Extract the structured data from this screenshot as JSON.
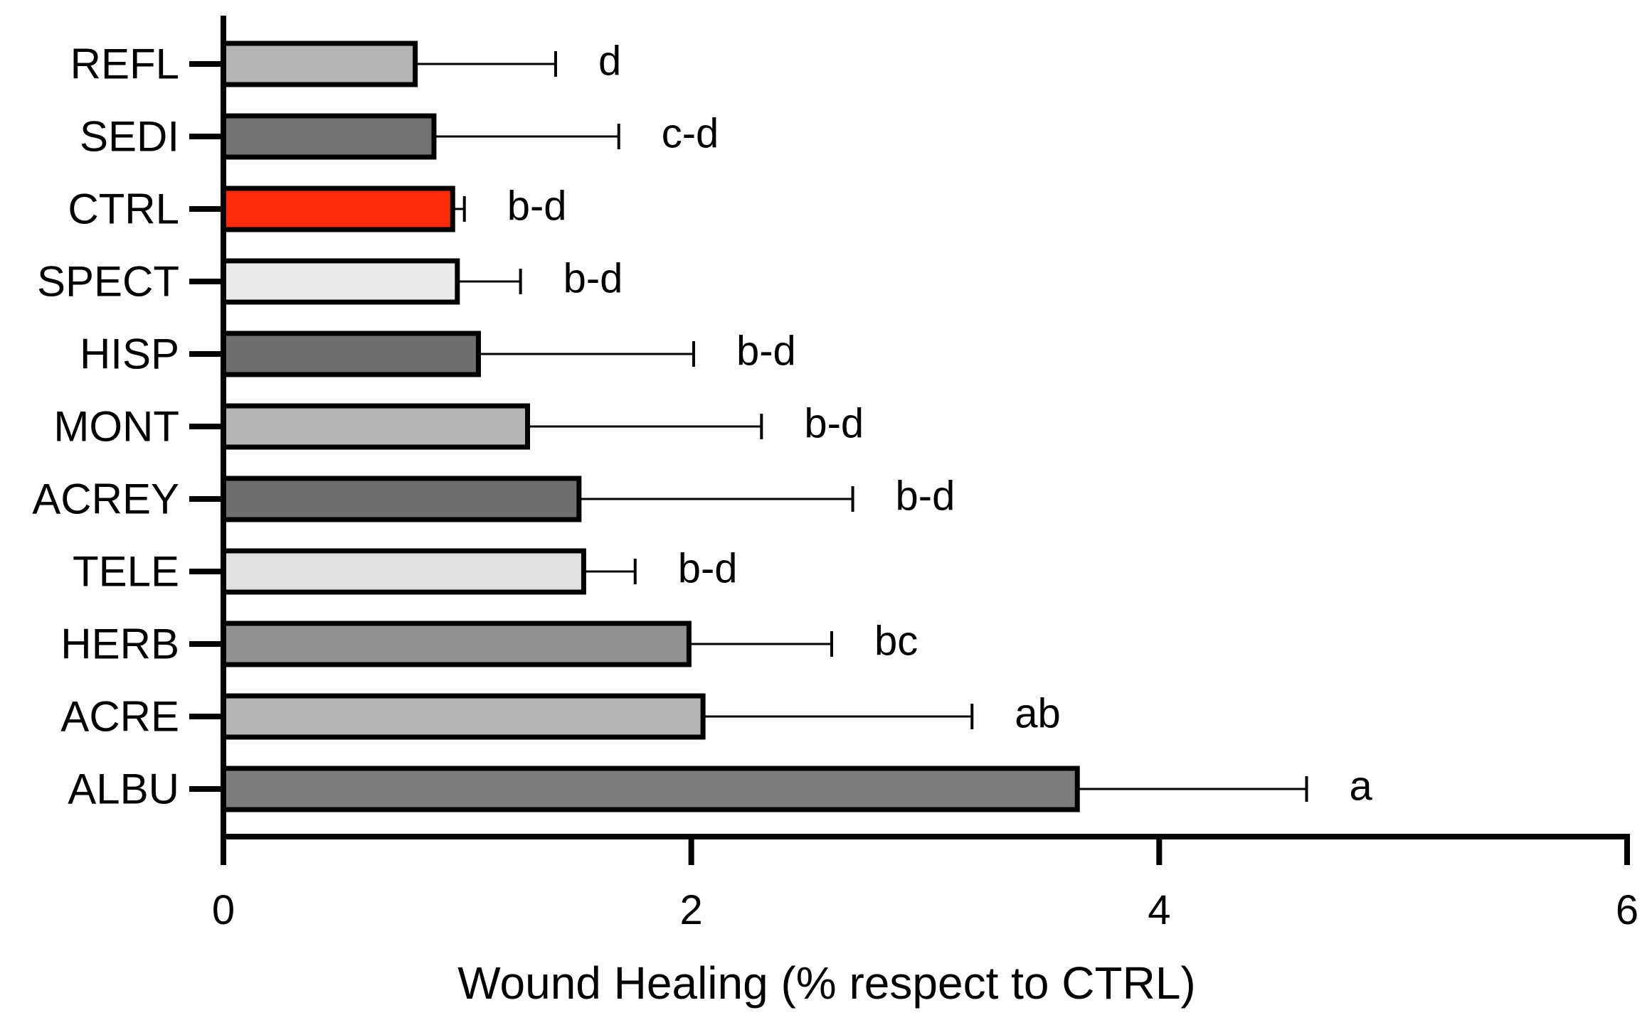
{
  "chart_data": {
    "type": "bar",
    "orientation": "horizontal",
    "categories": [
      "REFL",
      "SEDI",
      "CTRL",
      "SPECT",
      "HISP",
      "MONT",
      "ACREY",
      "TELE",
      "HERB",
      "ACRE",
      "ALBU"
    ],
    "values": [
      0.82,
      0.9,
      0.98,
      1.0,
      1.09,
      1.3,
      1.52,
      1.54,
      1.99,
      2.05,
      3.65
    ],
    "error_upper": [
      1.42,
      1.69,
      1.03,
      1.27,
      2.01,
      2.3,
      2.69,
      1.76,
      2.6,
      3.2,
      4.63
    ],
    "significance": [
      "d",
      "c-d",
      "b-d",
      "b-d",
      "b-d",
      "b-d",
      "b-d",
      "b-d",
      "bc",
      "ab",
      "a"
    ],
    "colors": [
      "#b4b4b4",
      "#737373",
      "#fa2a0a",
      "#ebebeb",
      "#6e6e6e",
      "#b4b4b4",
      "#6e6e6e",
      "#e1e1e1",
      "#919191",
      "#b4b4b4",
      "#7d7d7d"
    ],
    "xlabel": "Wound Healing (% respect to CTRL)",
    "ylabel": "",
    "title": "",
    "xlim": [
      0,
      6
    ],
    "xticks": [
      "0",
      "2",
      "4",
      "6"
    ],
    "grid": false,
    "legend": "none"
  }
}
